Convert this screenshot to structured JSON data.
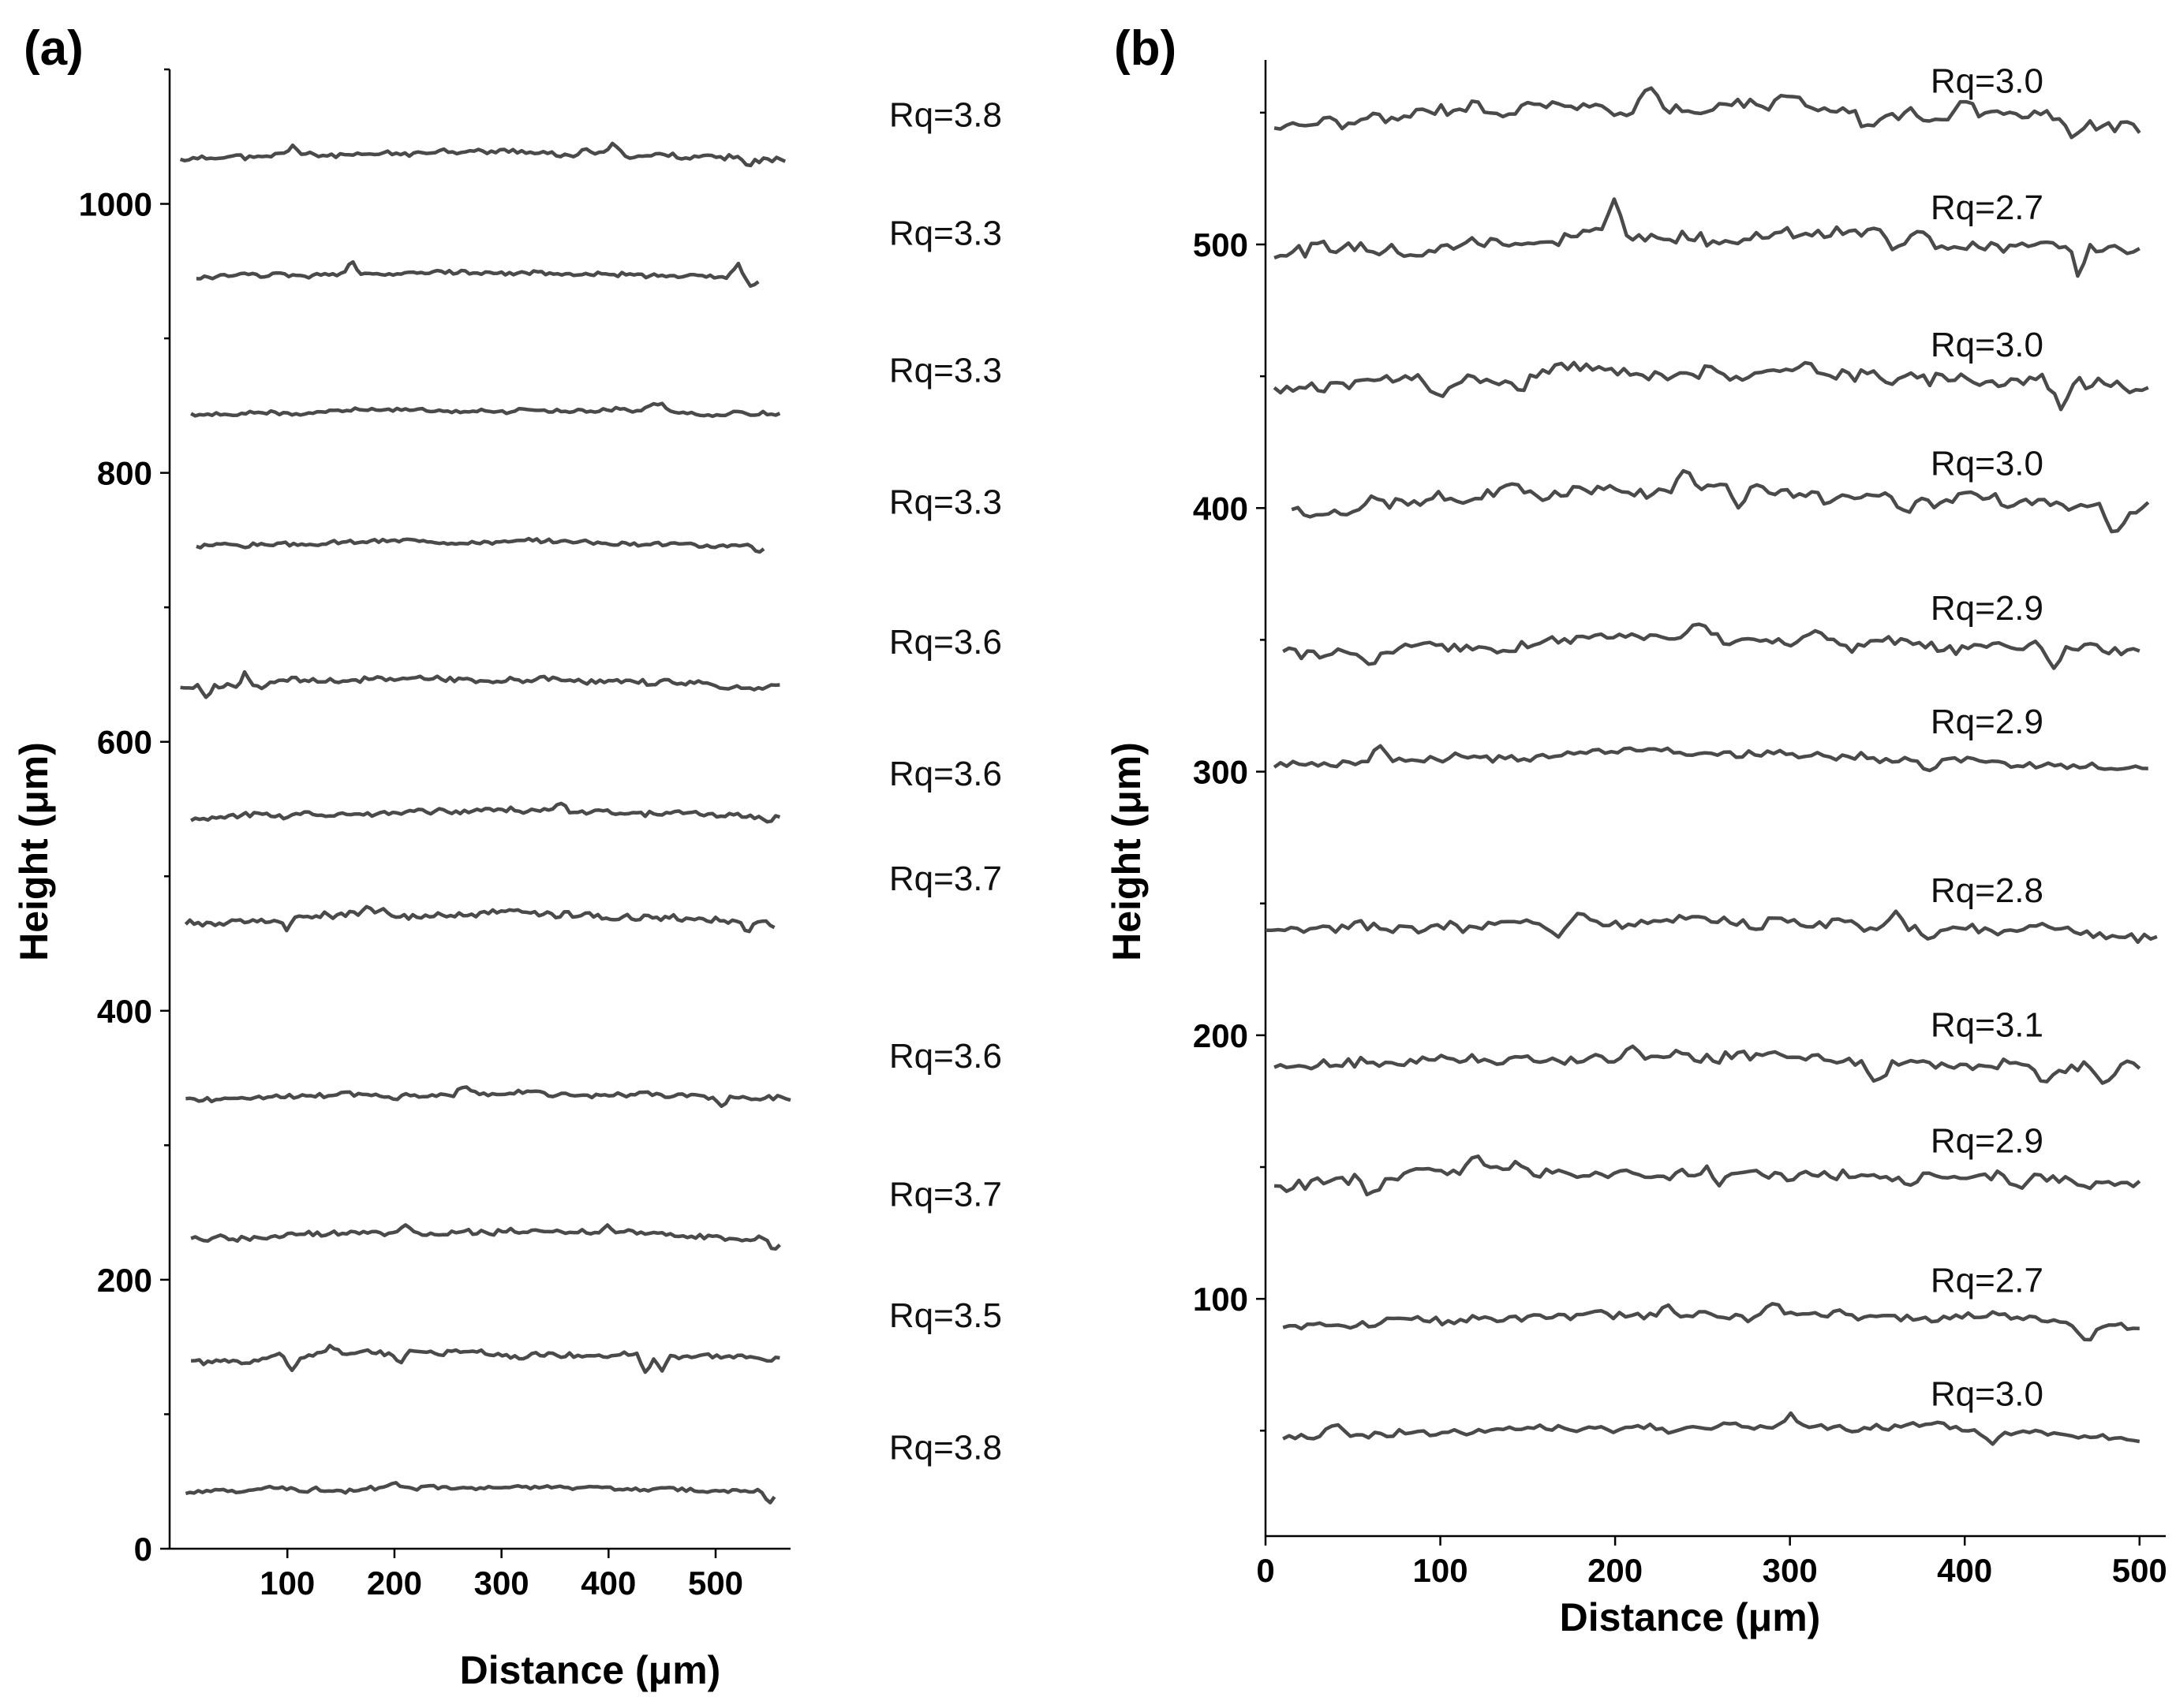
{
  "chart_data": [
    {
      "panel": "(a)",
      "type": "line",
      "xlabel": "Distance (μm)",
      "ylabel": "Height (μm)",
      "xlim": [
        -10,
        570
      ],
      "ylim": [
        0,
        1100
      ],
      "xticks": [
        100,
        200,
        300,
        400,
        500
      ],
      "yticks": [
        0,
        200,
        400,
        600,
        800,
        1000
      ],
      "yminor": [
        100,
        300,
        500,
        700,
        900,
        1100
      ],
      "series": [
        {
          "name": "Rq=3.8",
          "x_start": 0,
          "x_end": 565,
          "baseline": 1033,
          "seed": 11,
          "amp": 4,
          "spikes": [
            [
              105,
              8
            ],
            [
              380,
              6
            ],
            [
              405,
              8
            ]
          ],
          "dips": [
            [
              530,
              8
            ]
          ]
        },
        {
          "name": "Rq=3.3",
          "x_start": 15,
          "x_end": 540,
          "baseline": 945,
          "seed": 12,
          "amp": 3,
          "spikes": [
            [
              160,
              10
            ],
            [
              520,
              10
            ]
          ],
          "dips": [
            [
              535,
              8
            ]
          ]
        },
        {
          "name": "Rq=3.3",
          "x_start": 10,
          "x_end": 560,
          "baseline": 843,
          "seed": 13,
          "amp": 3,
          "spikes": [
            [
              440,
              6
            ],
            [
              450,
              6
            ]
          ],
          "dips": []
        },
        {
          "name": "Rq=3.3",
          "x_start": 15,
          "x_end": 545,
          "baseline": 745,
          "seed": 14,
          "amp": 3,
          "spikes": [],
          "dips": [
            [
              540,
              6
            ]
          ]
        },
        {
          "name": "Rq=3.6",
          "x_start": 0,
          "x_end": 560,
          "baseline": 641,
          "seed": 15,
          "amp": 4,
          "spikes": [
            [
              60,
              8
            ]
          ],
          "dips": [
            [
              25,
              10
            ],
            [
              75,
              6
            ]
          ]
        },
        {
          "name": "Rq=3.6",
          "x_start": 10,
          "x_end": 560,
          "baseline": 543,
          "seed": 16,
          "amp": 4,
          "spikes": [
            [
              355,
              8
            ]
          ],
          "dips": [
            [
              550,
              6
            ]
          ]
        },
        {
          "name": "Rq=3.7",
          "x_start": 5,
          "x_end": 555,
          "baseline": 465,
          "seed": 17,
          "amp": 5,
          "spikes": [
            [
              175,
              8
            ]
          ],
          "dips": [
            [
              100,
              6
            ],
            [
              530,
              6
            ]
          ]
        },
        {
          "name": "Rq=3.6",
          "x_start": 5,
          "x_end": 570,
          "baseline": 333,
          "seed": 18,
          "amp": 4,
          "spikes": [
            [
              265,
              8
            ]
          ],
          "dips": [
            [
              505,
              8
            ]
          ]
        },
        {
          "name": "Rq=3.7",
          "x_start": 10,
          "x_end": 560,
          "baseline": 230,
          "seed": 19,
          "amp": 4,
          "spikes": [
            [
              210,
              6
            ],
            [
              400,
              6
            ]
          ],
          "dips": [
            [
              555,
              8
            ]
          ]
        },
        {
          "name": "Rq=3.5",
          "x_start": 10,
          "x_end": 560,
          "baseline": 140,
          "seed": 20,
          "amp": 4,
          "spikes": [
            [
              140,
              6
            ]
          ],
          "dips": [
            [
              105,
              12
            ],
            [
              205,
              10
            ],
            [
              435,
              12
            ],
            [
              450,
              10
            ]
          ]
        },
        {
          "name": "Rq=3.8",
          "x_start": 5,
          "x_end": 555,
          "baseline": 42,
          "seed": 21,
          "amp": 3,
          "spikes": [
            [
              200,
              4
            ]
          ],
          "dips": [
            [
              550,
              8
            ]
          ]
        }
      ]
    },
    {
      "panel": "(b)",
      "type": "line",
      "xlabel": "Distance (μm)",
      "ylabel": "Height (μm)",
      "xlim": [
        0,
        515
      ],
      "ylim": [
        10,
        570
      ],
      "xticks": [
        0,
        100,
        200,
        300,
        400,
        500
      ],
      "yticks": [
        100,
        200,
        300,
        400,
        500
      ],
      "yminor": [
        50,
        150,
        250,
        350,
        450,
        550
      ],
      "series": [
        {
          "name": "Rq=3.0",
          "x_start": 5,
          "x_end": 500,
          "baseline": 545,
          "seed": 31,
          "amp": 5,
          "spikes": [
            [
              220,
              12
            ],
            [
              300,
              6
            ],
            [
              400,
              8
            ]
          ],
          "dips": [
            [
              345,
              8
            ],
            [
              460,
              6
            ]
          ]
        },
        {
          "name": "Rq=2.7",
          "x_start": 5,
          "x_end": 500,
          "baseline": 497,
          "seed": 32,
          "amp": 5,
          "spikes": [
            [
              200,
              14
            ],
            [
              375,
              6
            ]
          ],
          "dips": [
            [
              360,
              6
            ],
            [
              465,
              10
            ]
          ]
        },
        {
          "name": "Rq=3.0",
          "x_start": 5,
          "x_end": 505,
          "baseline": 445,
          "seed": 33,
          "amp": 5,
          "spikes": [
            [
              310,
              6
            ]
          ],
          "dips": [
            [
              100,
              8
            ],
            [
              145,
              6
            ],
            [
              455,
              10
            ]
          ]
        },
        {
          "name": "Rq=3.0",
          "x_start": 15,
          "x_end": 505,
          "baseline": 400,
          "seed": 34,
          "amp": 5,
          "spikes": [
            [
              240,
              10
            ]
          ],
          "dips": [
            [
              270,
              8
            ],
            [
              365,
              6
            ],
            [
              485,
              8
            ]
          ]
        },
        {
          "name": "Rq=2.9",
          "x_start": 10,
          "x_end": 500,
          "baseline": 345,
          "seed": 35,
          "amp": 4,
          "spikes": [
            [
              250,
              5
            ]
          ],
          "dips": [
            [
              60,
              6
            ],
            [
              335,
              6
            ],
            [
              450,
              8
            ]
          ]
        },
        {
          "name": "Rq=2.9",
          "x_start": 5,
          "x_end": 505,
          "baseline": 302,
          "seed": 36,
          "amp": 3,
          "spikes": [
            [
              65,
              6
            ]
          ],
          "dips": [
            [
              380,
              5
            ]
          ]
        },
        {
          "name": "Rq=2.8",
          "x_start": 0,
          "x_end": 510,
          "baseline": 238,
          "seed": 37,
          "amp": 4,
          "spikes": [
            [
              180,
              6
            ],
            [
              360,
              6
            ]
          ],
          "dips": [
            [
              165,
              6
            ],
            [
              280,
              6
            ],
            [
              380,
              6
            ]
          ]
        },
        {
          "name": "Rq=3.1",
          "x_start": 5,
          "x_end": 500,
          "baseline": 187,
          "seed": 38,
          "amp": 4,
          "spikes": [
            [
              210,
              5
            ]
          ],
          "dips": [
            [
              350,
              8
            ],
            [
              445,
              6
            ],
            [
              480,
              8
            ]
          ]
        },
        {
          "name": "Rq=2.9",
          "x_start": 5,
          "x_end": 500,
          "baseline": 143,
          "seed": 39,
          "amp": 4,
          "spikes": [
            [
              120,
              6
            ]
          ],
          "dips": [
            [
              60,
              6
            ],
            [
              260,
              5
            ],
            [
              430,
              6
            ]
          ]
        },
        {
          "name": "Rq=2.7",
          "x_start": 10,
          "x_end": 500,
          "baseline": 90,
          "seed": 40,
          "amp": 3,
          "spikes": [
            [
              230,
              6
            ],
            [
              290,
              5
            ]
          ],
          "dips": [
            [
              470,
              5
            ]
          ]
        },
        {
          "name": "Rq=3.0",
          "x_start": 10,
          "x_end": 500,
          "baseline": 47,
          "seed": 41,
          "amp": 3,
          "spikes": [
            [
              40,
              5
            ],
            [
              300,
              5
            ]
          ],
          "dips": [
            [
              415,
              6
            ]
          ]
        }
      ]
    }
  ]
}
